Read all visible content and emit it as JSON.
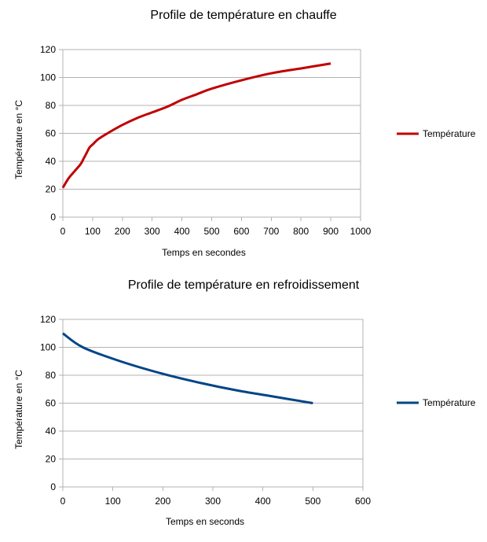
{
  "chart_data": [
    {
      "type": "line",
      "title": "Profile de température en chauffe",
      "xlabel": "Temps en secondes",
      "ylabel": "Température en °C",
      "xlim": [
        0,
        1000
      ],
      "ylim": [
        0,
        120
      ],
      "xticks": [
        0,
        100,
        200,
        300,
        400,
        500,
        600,
        700,
        800,
        900,
        1000
      ],
      "yticks": [
        0,
        20,
        40,
        60,
        80,
        100,
        120
      ],
      "grid": true,
      "legend": "right",
      "series": [
        {
          "name": "Température",
          "color": "#c00000",
          "x": [
            0,
            20,
            40,
            60,
            70,
            80,
            90,
            100,
            120,
            150,
            200,
            250,
            300,
            350,
            400,
            450,
            500,
            600,
            700,
            800,
            900
          ],
          "y": [
            21,
            28,
            33,
            38,
            42,
            46,
            50,
            52,
            56,
            60,
            66,
            71,
            75,
            79,
            84,
            88,
            92,
            98,
            103,
            106.5,
            110
          ]
        }
      ]
    },
    {
      "type": "line",
      "title": "Profile de température en refroidissement",
      "xlabel": "Temps en seconds",
      "ylabel": "Température en °C",
      "xlim": [
        0,
        600
      ],
      "ylim": [
        0,
        120
      ],
      "xticks": [
        0,
        100,
        200,
        300,
        400,
        500,
        600
      ],
      "yticks": [
        0,
        20,
        40,
        60,
        80,
        100,
        120
      ],
      "grid": true,
      "legend": "right",
      "series": [
        {
          "name": "Température",
          "color": "#004586",
          "x": [
            0,
            40,
            115,
            200,
            275,
            350,
            425,
            500
          ],
          "y": [
            110,
            100,
            90,
            81,
            74.5,
            69,
            64.5,
            60
          ]
        }
      ]
    }
  ]
}
